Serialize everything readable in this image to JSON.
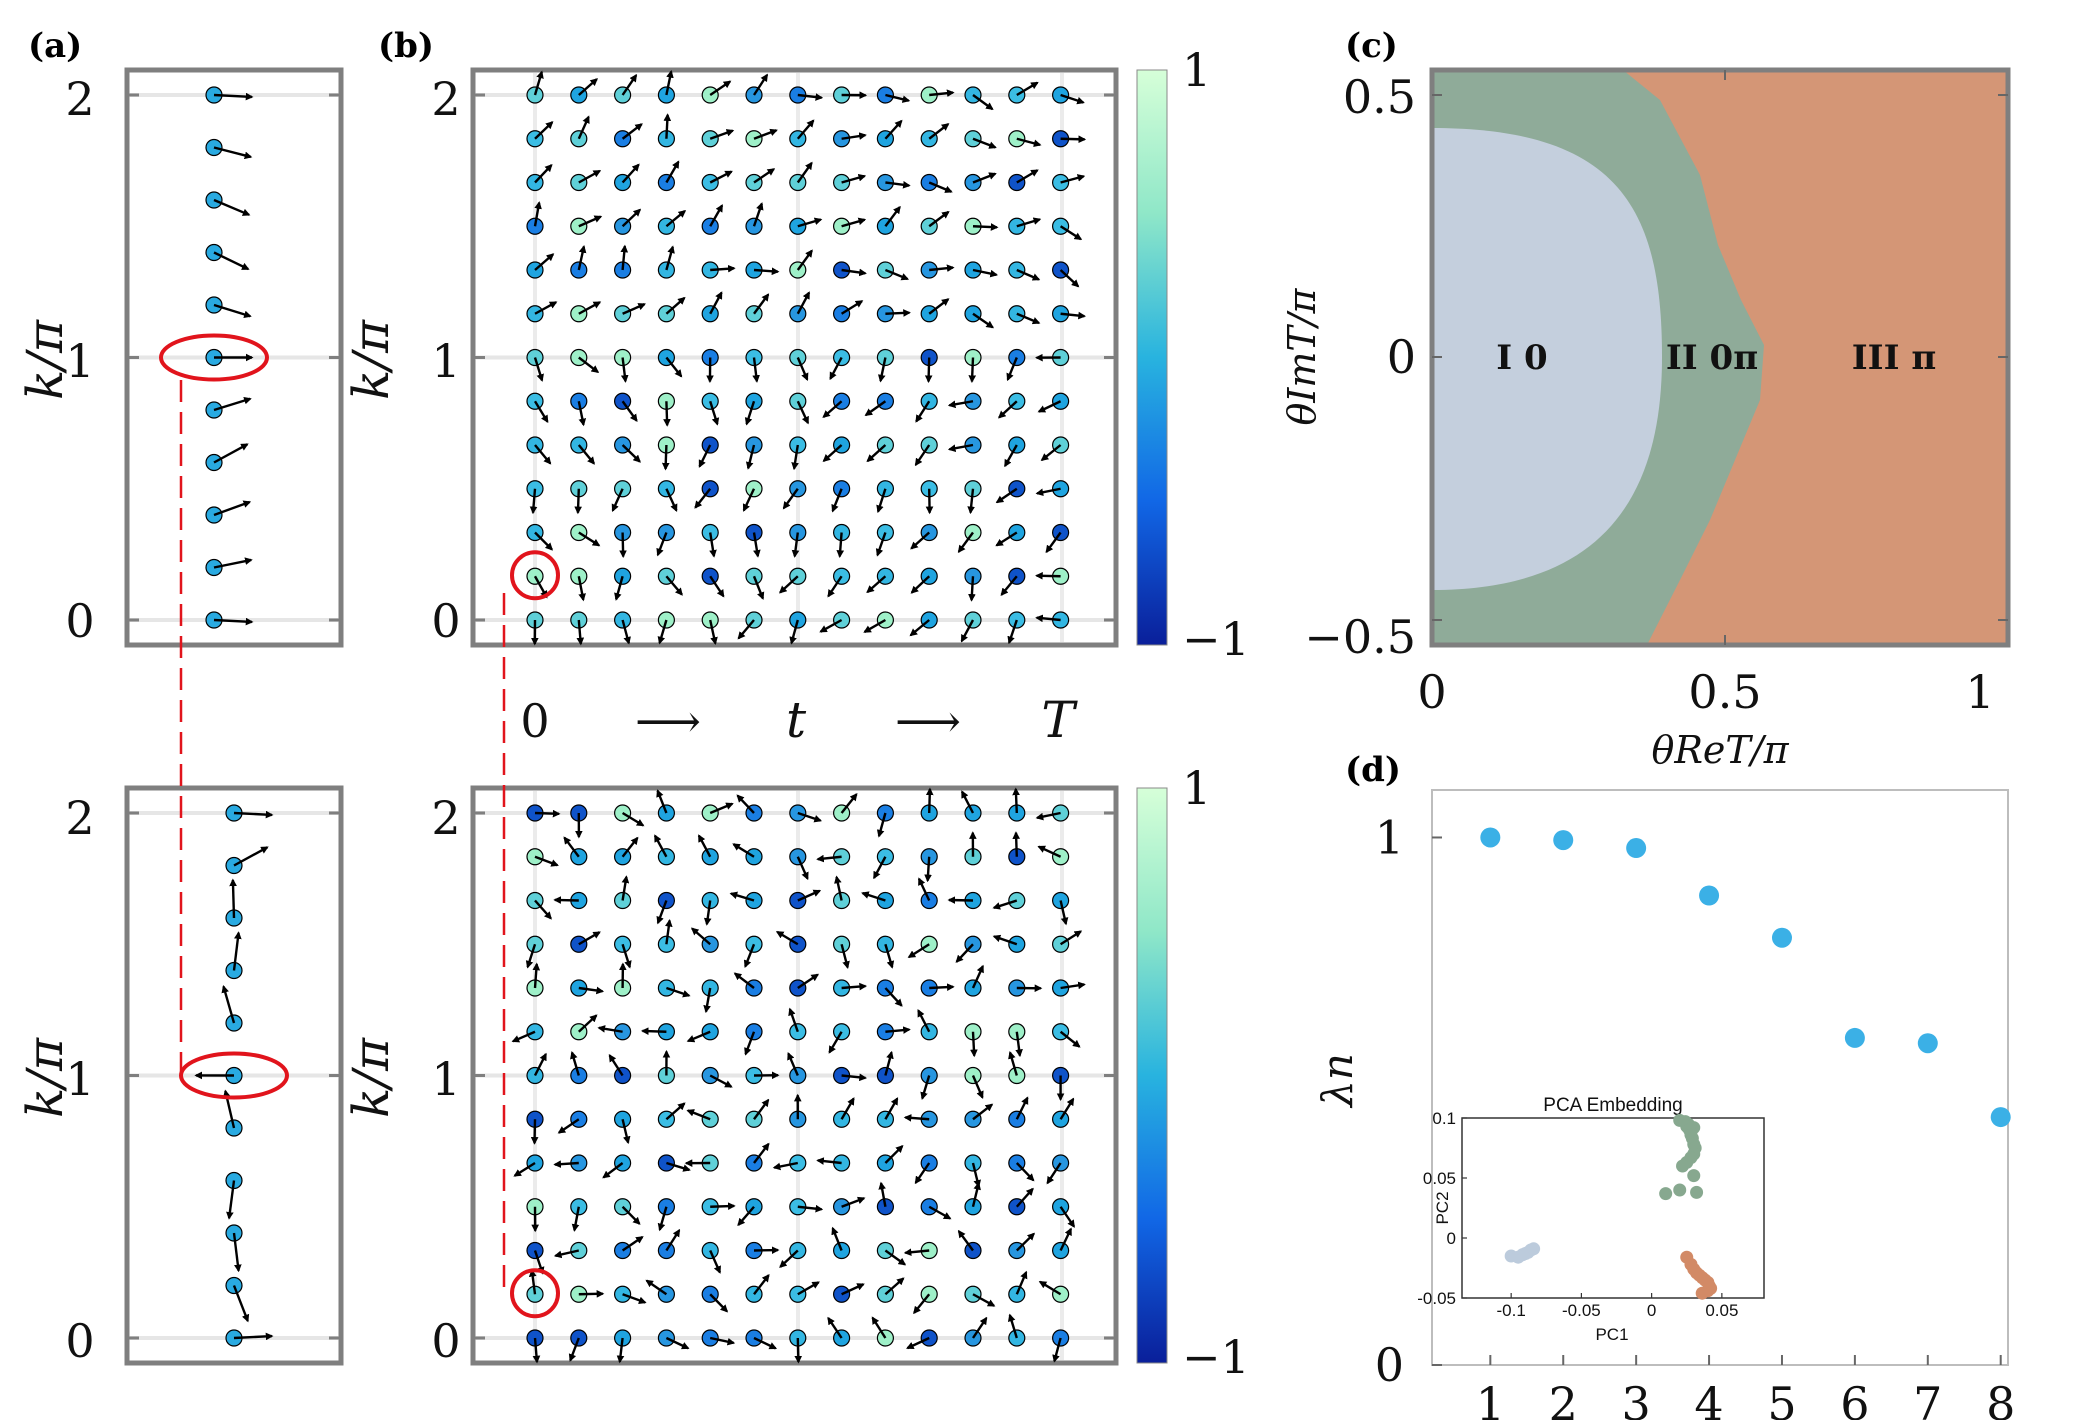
{
  "panels": {
    "a": {
      "label": "(a)"
    },
    "b": {
      "label": "(b)"
    },
    "c": {
      "label": "(c)"
    },
    "d": {
      "label": "(d)"
    }
  },
  "labels": {
    "k_over_pi": "k/π",
    "time_row": [
      "0",
      "⟶",
      "t",
      "⟶",
      "T"
    ],
    "theta_im": "θImT/π",
    "theta_re": "θReT/π",
    "lambda_n": "λn"
  },
  "ticks": {
    "k_ticks": [
      "0",
      "1",
      "2"
    ],
    "colorbar_ticks": [
      "1",
      "−1"
    ],
    "c_x_ticks": [
      "0",
      "0.5",
      "1"
    ],
    "c_y_ticks": [
      "0.5",
      "0",
      "−0.5"
    ],
    "d_y_ticks": [
      "1",
      "0"
    ]
  },
  "phase_regions": [
    {
      "name": "I 0",
      "color": "#c4cfdd"
    },
    {
      "name": "II 0π",
      "color": "#8fab99"
    },
    {
      "name": "III π",
      "color": "#d49676"
    }
  ],
  "chart_data": [
    {
      "type": "scatter",
      "title": "(d)",
      "xlabel": "",
      "ylabel": "λn",
      "x": [
        1,
        2,
        3,
        4,
        5,
        6,
        7,
        8
      ],
      "values": [
        1.0,
        0.995,
        0.98,
        0.89,
        0.81,
        0.62,
        0.61,
        0.47
      ],
      "xlim": [
        0.2,
        8.1
      ],
      "ylim": [
        0,
        1.09
      ],
      "x_ticks": [
        "1",
        "2",
        "3",
        "4",
        "5",
        "6",
        "7",
        "8"
      ],
      "y_ticks": [
        "0",
        "1"
      ],
      "color": "#3bb0e6"
    },
    {
      "type": "scatter",
      "title": "PCA Embedding",
      "xlabel": "PC1",
      "ylabel": "PC2",
      "xlim": [
        -0.135,
        0.08
      ],
      "ylim": [
        -0.05,
        0.1
      ],
      "x_ticks": [
        "-0.1",
        "-0.05",
        "0",
        "0.05"
      ],
      "y_ticks": [
        "0.1",
        "0.05",
        "0",
        "-0.05"
      ],
      "series": [
        {
          "name": "I",
          "color": "#bccbdc",
          "x": [
            -0.1,
            -0.095,
            -0.092,
            -0.09,
            -0.088,
            -0.086,
            -0.084
          ],
          "y": [
            -0.015,
            -0.016,
            -0.014,
            -0.013,
            -0.012,
            -0.01,
            -0.009
          ]
        },
        {
          "name": "II",
          "color": "#87a88f",
          "x": [
            0.02,
            0.024,
            0.026,
            0.025,
            0.03,
            0.027,
            0.028,
            0.029,
            0.03,
            0.031,
            0.03,
            0.028,
            0.025,
            0.022,
            0.03,
            0.01,
            0.02,
            0.032
          ],
          "y": [
            0.098,
            0.097,
            0.095,
            0.093,
            0.092,
            0.09,
            0.086,
            0.083,
            0.078,
            0.075,
            0.07,
            0.067,
            0.063,
            0.06,
            0.052,
            0.037,
            0.04,
            0.038
          ]
        },
        {
          "name": "III",
          "color": "#d28a66",
          "x": [
            0.025,
            0.028,
            0.03,
            0.032,
            0.034,
            0.036,
            0.038,
            0.04,
            0.041,
            0.042,
            0.04,
            0.036
          ],
          "y": [
            -0.016,
            -0.022,
            -0.026,
            -0.029,
            -0.031,
            -0.033,
            -0.035,
            -0.037,
            -0.04,
            -0.042,
            -0.044,
            -0.046
          ]
        }
      ],
      "inset_texts": {
        "title": "PCA Embedding",
        "xlabel": "PC1",
        "ylabel": "PC2"
      }
    }
  ],
  "colors": {
    "frame": "#7f7f7f",
    "grid": "#e6e6e6",
    "highlight": "#e1141c",
    "arrow": "#000000",
    "cmap_low": "#0a2fa8",
    "cmap_mid": "#1fa4e0",
    "cmap_high": "#cfffd5"
  }
}
